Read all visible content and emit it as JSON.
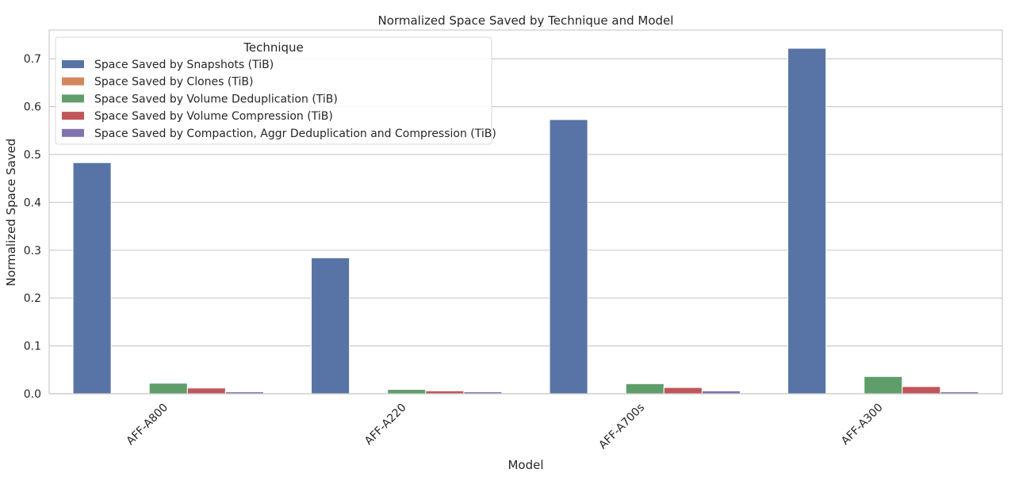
{
  "chart_data": {
    "type": "bar",
    "title": "Normalized Space Saved by Technique and Model",
    "xlabel": "Model",
    "ylabel": "Normalized Space Saved",
    "ylim": [
      0,
      0.76
    ],
    "yticks": [
      0.0,
      0.1,
      0.2,
      0.3,
      0.4,
      0.5,
      0.6,
      0.7
    ],
    "ytick_labels": [
      "0.0",
      "0.1",
      "0.2",
      "0.3",
      "0.4",
      "0.5",
      "0.6",
      "0.7"
    ],
    "grid": true,
    "legend_title": "Technique",
    "legend_position": "top-left",
    "categories": [
      "AFF-A800",
      "AFF-A220",
      "AFF-A700s",
      "AFF-A300"
    ],
    "series": [
      {
        "name": "Space Saved by Snapshots (TiB)",
        "color": "#5874a6",
        "values": [
          0.483,
          0.284,
          0.573,
          0.722
        ]
      },
      {
        "name": "Space Saved by Clones (TiB)",
        "color": "#d3875e",
        "values": [
          0.0,
          0.0,
          0.0,
          0.0
        ]
      },
      {
        "name": "Space Saved by Volume Deduplication (TiB)",
        "color": "#5f9e6a",
        "values": [
          0.022,
          0.009,
          0.021,
          0.036
        ]
      },
      {
        "name": "Space Saved by Volume Compression (TiB)",
        "color": "#c0565b",
        "values": [
          0.012,
          0.006,
          0.013,
          0.015
        ]
      },
      {
        "name": "Space Saved by Compaction, Aggr Deduplication and Compression (TiB)",
        "color": "#8172b0",
        "values": [
          0.004,
          0.004,
          0.006,
          0.004
        ]
      }
    ]
  }
}
